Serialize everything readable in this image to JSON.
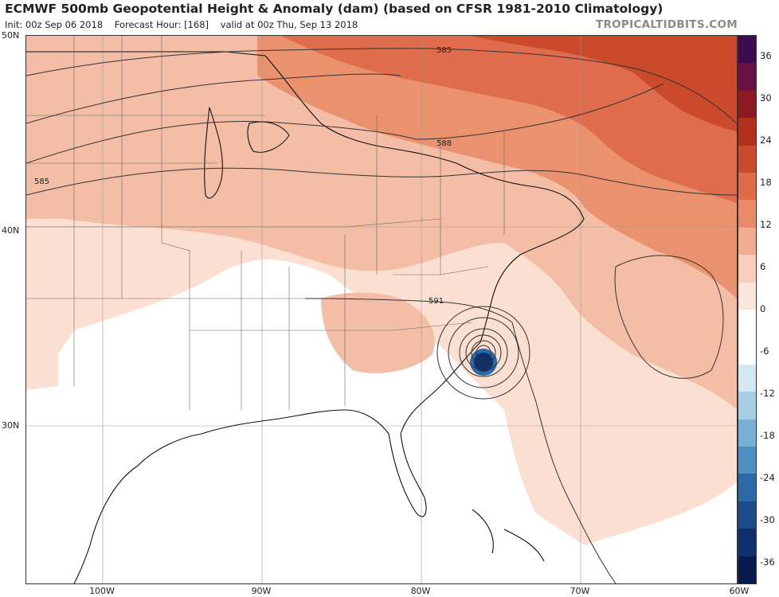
{
  "header": {
    "title": "ECMWF 500mb Geopotential Height & Anomaly (dam) (based on CFSR 1981-2010 Climatology)",
    "init": "Init: 00z Sep 06 2018",
    "forecast_hour": "Forecast Hour: [168]",
    "valid": "valid at 00z Thu, Sep 13 2018",
    "credit": "TROPICALTIDBITS.COM"
  },
  "axes": {
    "lat_labels": [
      "50N",
      "40N",
      "30N"
    ],
    "lon_labels": [
      "100W",
      "90W",
      "80W",
      "70W",
      "60W"
    ]
  },
  "contours": {
    "labels": [
      "585",
      "588",
      "585",
      "591"
    ]
  },
  "colorbar": {
    "labels": [
      "36",
      "30",
      "24",
      "18",
      "12",
      "6",
      "0",
      "-6",
      "-12",
      "-18",
      "-24",
      "-30",
      "-36"
    ],
    "colors": [
      "#3d0a50",
      "#6a0f44",
      "#8e1822",
      "#b2301c",
      "#cc4a2c",
      "#de6a48",
      "#ea8a68",
      "#f2ac90",
      "#f8cdb9",
      "#fbe5da",
      "#ffffff",
      "#ffffff",
      "#d4e8f3",
      "#a7cde4",
      "#78b0d5",
      "#4d8fc3",
      "#2b6aa8",
      "#1a4b8a",
      "#0d2f6b",
      "#061a4d"
    ]
  }
}
